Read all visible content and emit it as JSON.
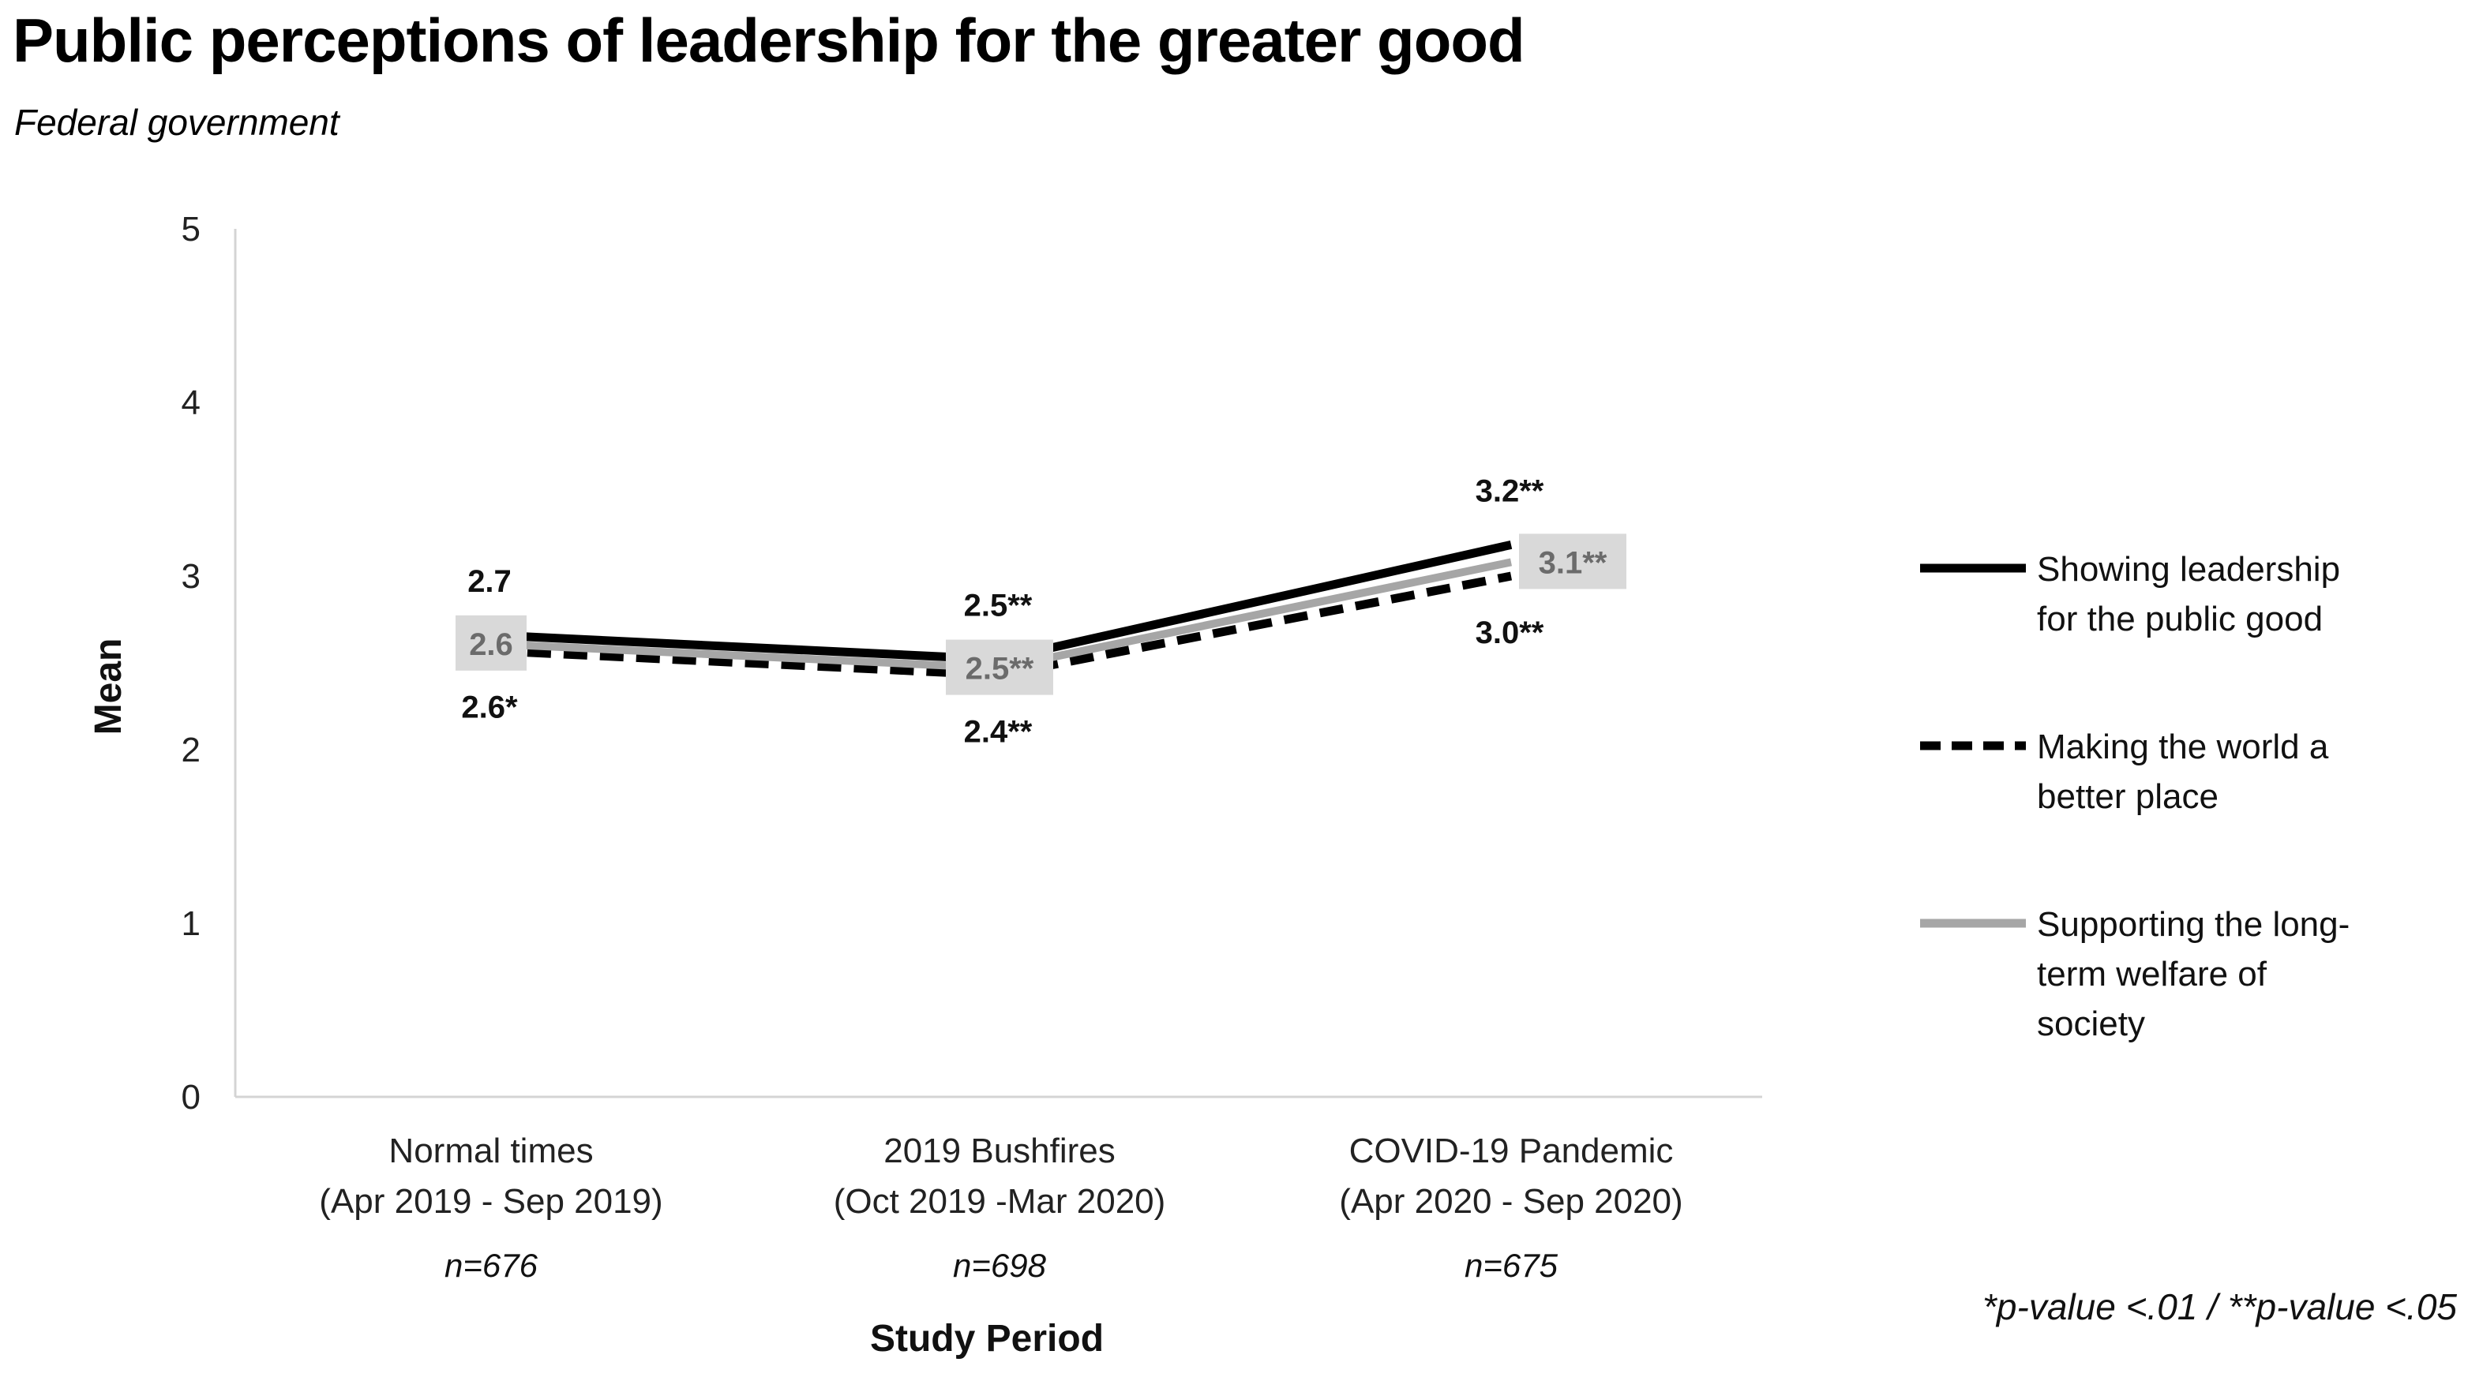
{
  "title": "Public perceptions of leadership for the greater good",
  "subtitle": "Federal government",
  "chart_data": {
    "type": "line",
    "title": "Public perceptions of leadership for the greater good",
    "subtitle": "Federal government",
    "xlabel": "Study Period",
    "ylabel": "Mean",
    "ylim": [
      0,
      5
    ],
    "yticks": [
      "0",
      "1",
      "2",
      "3",
      "4",
      "5"
    ],
    "categories": [
      [
        "Normal times",
        "(Apr 2019 - Sep 2019)"
      ],
      [
        "2019 Bushfires",
        "(Oct 2019 -Mar 2020)"
      ],
      [
        "COVID-19 Pandemic",
        "(Apr 2020 - Sep 2020)"
      ]
    ],
    "sample_sizes": [
      "n=676",
      "n=698",
      "n=675"
    ],
    "series": [
      {
        "name": "Showing leadership for the public good",
        "legend_lines": [
          "Showing leadership",
          "for the public good"
        ],
        "color": "#000000",
        "style": "solid",
        "values": [
          2.66,
          2.52,
          3.18
        ],
        "labels": [
          "2.7",
          "2.5**",
          "3.2**"
        ]
      },
      {
        "name": "Making the world a better place",
        "legend_lines": [
          "Making the world a",
          "better place"
        ],
        "color": "#000000",
        "style": "dashed",
        "values": [
          2.57,
          2.43,
          3.0
        ],
        "labels": [
          "2.6*",
          "2.4**",
          "3.0**"
        ]
      },
      {
        "name": "Supporting the long-term welfare of society",
        "legend_lines": [
          "Supporting the long-",
          "term welfare of",
          "society"
        ],
        "color": "#a6a6a6",
        "style": "solid",
        "values": [
          2.61,
          2.47,
          3.08
        ],
        "labels": [
          "2.6",
          "2.5**",
          "3.1**"
        ]
      }
    ],
    "footnote": "*p-value <.01 / **p-value <.05",
    "grid": false,
    "legend_position": "right"
  }
}
